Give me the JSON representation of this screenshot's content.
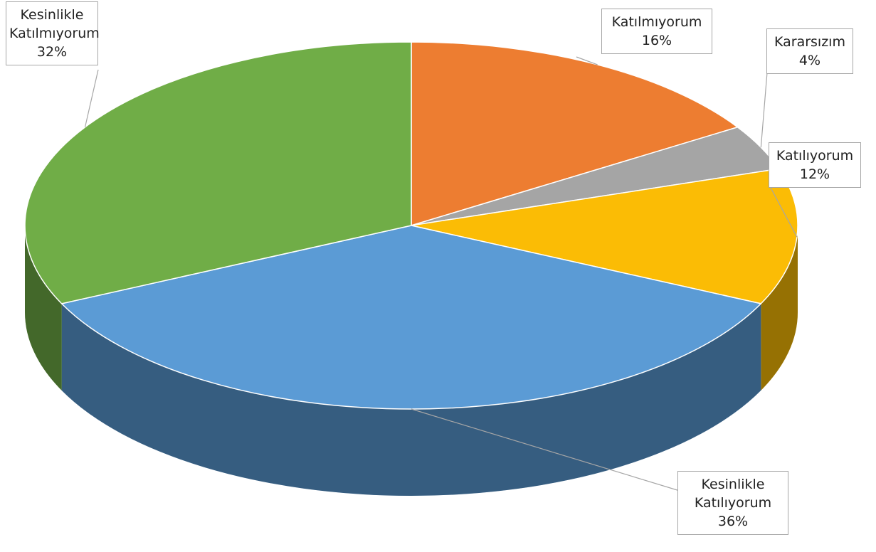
{
  "chart_data": {
    "type": "pie",
    "categories": [
      "Katılmıyorum",
      "Kararsızım",
      "Katılıyorum",
      "Kesinlikle Katılıyorum",
      "Kesinlikle Katılmıyorum"
    ],
    "values": [
      16,
      4,
      12,
      36,
      32
    ],
    "value_labels": [
      "16%",
      "4%",
      "12%",
      "36%",
      "32%"
    ],
    "colors": [
      "#ed7d31",
      "#a5a5a5",
      "#fbbc05",
      "#5b9bd5",
      "#70ad47"
    ]
  }
}
